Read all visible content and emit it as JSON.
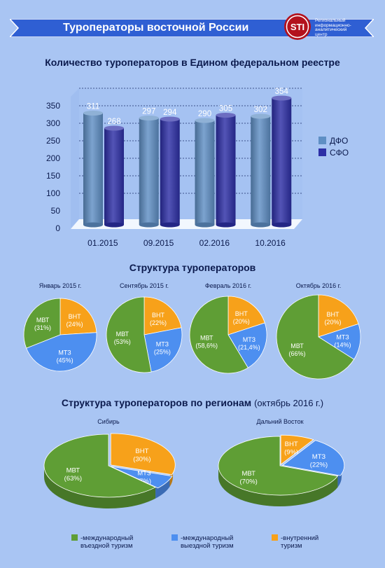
{
  "header": {
    "title": "Туроператоры восточной России",
    "logo_text": "STI",
    "logo_caption": [
      "Региональный",
      "информационно-",
      "аналитический",
      "центр"
    ]
  },
  "colors": {
    "dfo": "#5f8fc4",
    "sfo": "#2d2fa6",
    "mvt": "#5f9e35",
    "mtz": "#4d8ff0",
    "vnt": "#f7a11a",
    "banner": "#2f5fd3"
  },
  "section_titles": {
    "registry": "Количество туроператоров в Едином федеральном реестре",
    "structure": "Структура туроператоров",
    "regions": "Структура туроператоров по регионам",
    "regions_sub": "(октябрь 2016 г.)"
  },
  "chart_data": [
    {
      "type": "bar",
      "title": "Количество туроператоров в Едином федеральном реестре",
      "categories": [
        "01.2015",
        "09.2015",
        "02.2016",
        "10.2016"
      ],
      "series": [
        {
          "name": "ДФО",
          "values": [
            311,
            297,
            290,
            302
          ]
        },
        {
          "name": "СФО",
          "values": [
            268,
            294,
            305,
            354
          ]
        }
      ],
      "ylim": [
        0,
        350
      ],
      "yticks": [
        0,
        50,
        100,
        150,
        200,
        250,
        300,
        350
      ],
      "grid": true,
      "legend": "right"
    },
    {
      "type": "pie",
      "title": "Январь 2015 г.",
      "slices": [
        {
          "label": "ВНТ",
          "value": 24,
          "text": "(24%)",
          "key": "vnt"
        },
        {
          "label": "МТЗ",
          "value": 45,
          "text": "(45%)",
          "key": "mtz"
        },
        {
          "label": "МВТ",
          "value": 31,
          "text": "(31%)",
          "key": "mvt"
        }
      ]
    },
    {
      "type": "pie",
      "title": "Сентябрь 2015 г.",
      "slices": [
        {
          "label": "ВНТ",
          "value": 22,
          "text": "(22%)",
          "key": "vnt"
        },
        {
          "label": "МТЗ",
          "value": 25,
          "text": "(25%)",
          "key": "mtz"
        },
        {
          "label": "МВТ",
          "value": 53,
          "text": "(53%)",
          "key": "mvt"
        }
      ]
    },
    {
      "type": "pie",
      "title": "Февраль 2016 г.",
      "slices": [
        {
          "label": "ВНТ",
          "value": 20,
          "text": "(20%)",
          "key": "vnt"
        },
        {
          "label": "МТЗ",
          "value": 21.4,
          "text": "(21,4%)",
          "key": "mtz"
        },
        {
          "label": "МВТ",
          "value": 58.6,
          "text": "(58,6%)",
          "key": "mvt"
        }
      ]
    },
    {
      "type": "pie",
      "title": "Октябрь 2016 г.",
      "slices": [
        {
          "label": "ВНТ",
          "value": 20,
          "text": "(20%)",
          "key": "vnt"
        },
        {
          "label": "МТЗ",
          "value": 14,
          "text": "(14%)",
          "key": "mtz"
        },
        {
          "label": "МВТ",
          "value": 66,
          "text": "(66%)",
          "key": "mvt"
        }
      ]
    },
    {
      "type": "pie",
      "title": "Сибирь",
      "slices": [
        {
          "label": "ВНТ",
          "value": 30,
          "text": "(30%)",
          "key": "vnt"
        },
        {
          "label": "МТЗ",
          "value": 7,
          "text": "(7%)",
          "key": "mtz"
        },
        {
          "label": "МВТ",
          "value": 63,
          "text": "(63%)",
          "key": "mvt"
        }
      ]
    },
    {
      "type": "pie",
      "title": "Дальний Восток",
      "slices": [
        {
          "label": "ВНТ",
          "value": 9,
          "text": "(9%)",
          "key": "vnt"
        },
        {
          "label": "МТЗ",
          "value": 22,
          "text": "(22%)",
          "key": "mtz"
        },
        {
          "label": "МВТ",
          "value": 70,
          "text": "(70%)",
          "key": "mvt"
        }
      ]
    }
  ],
  "legend_bottom": [
    {
      "key": "mvt",
      "line1": "-международный",
      "line2": "въездной туризм"
    },
    {
      "key": "mtz",
      "line1": "-международный",
      "line2": "выездной туризм"
    },
    {
      "key": "vnt",
      "line1": "-внутренний",
      "line2": "туризм"
    }
  ]
}
